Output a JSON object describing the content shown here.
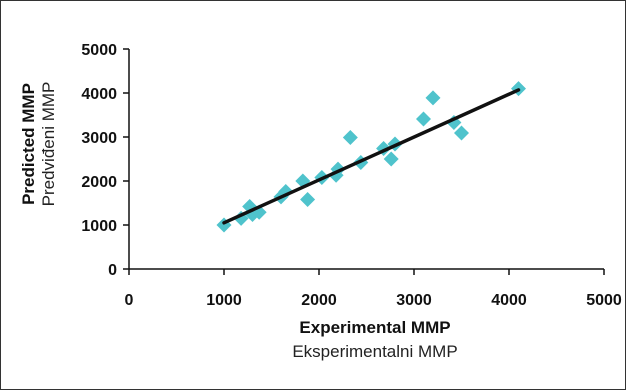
{
  "chart_data": {
    "type": "scatter",
    "xlabel": "Experimental MMP",
    "xlabel_alt": "Eksperimentalni MMP",
    "ylabel": "Predicted MMP",
    "ylabel_alt": "Predviđeni MMP",
    "xlim": [
      0,
      5000
    ],
    "ylim": [
      0,
      5000
    ],
    "xticks": [
      "0",
      "1000",
      "2000",
      "3000",
      "4000",
      "5000"
    ],
    "yticks": [
      "0",
      "1000",
      "2000",
      "3000",
      "4000",
      "5000"
    ],
    "grid": false,
    "marker": "diamond",
    "marker_color": "#4fc3cc",
    "trendline_color": "#111111",
    "points": [
      {
        "x": 1000,
        "y": 1000
      },
      {
        "x": 1180,
        "y": 1150
      },
      {
        "x": 1270,
        "y": 1420
      },
      {
        "x": 1300,
        "y": 1240
      },
      {
        "x": 1370,
        "y": 1290
      },
      {
        "x": 1600,
        "y": 1640
      },
      {
        "x": 1650,
        "y": 1760
      },
      {
        "x": 1830,
        "y": 2000
      },
      {
        "x": 1880,
        "y": 1580
      },
      {
        "x": 2030,
        "y": 2080
      },
      {
        "x": 2180,
        "y": 2130
      },
      {
        "x": 2200,
        "y": 2270
      },
      {
        "x": 2330,
        "y": 2990
      },
      {
        "x": 2440,
        "y": 2420
      },
      {
        "x": 2680,
        "y": 2740
      },
      {
        "x": 2760,
        "y": 2500
      },
      {
        "x": 2800,
        "y": 2840
      },
      {
        "x": 3100,
        "y": 3410
      },
      {
        "x": 3200,
        "y": 3890
      },
      {
        "x": 3420,
        "y": 3330
      },
      {
        "x": 3500,
        "y": 3090
      },
      {
        "x": 4100,
        "y": 4100
      }
    ],
    "trendline": [
      [
        1000,
        1050
      ],
      [
        4100,
        4070
      ]
    ]
  }
}
